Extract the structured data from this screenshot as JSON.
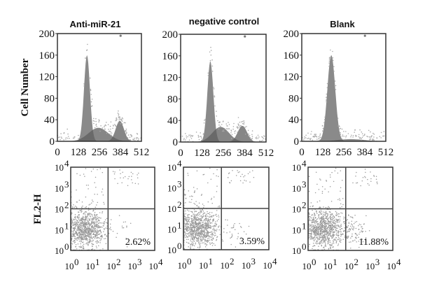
{
  "chart_data": [
    {
      "type": "area",
      "title": "Anti-miR-21",
      "ylabel": "Cell Number",
      "xlim": [
        0,
        512
      ],
      "ylim": [
        0,
        200
      ],
      "xticks": [
        "0",
        "128",
        "256",
        "384",
        "512"
      ],
      "yticks": [
        "0",
        "40",
        "80",
        "120",
        "160",
        "200"
      ],
      "peaks": [
        {
          "center": 180,
          "height": 160,
          "width": 18
        },
        {
          "center": 250,
          "height": 25,
          "width": 60
        },
        {
          "center": 380,
          "height": 38,
          "width": 25
        }
      ]
    },
    {
      "type": "area",
      "title": "negative control",
      "xlim": [
        0,
        512
      ],
      "ylim": [
        0,
        200
      ],
      "xticks": [
        "0",
        "128",
        "256",
        "384",
        "512"
      ],
      "yticks": [
        "0",
        "40",
        "80",
        "120",
        "160",
        "200"
      ],
      "peaks": [
        {
          "center": 178,
          "height": 150,
          "width": 18
        },
        {
          "center": 240,
          "height": 28,
          "width": 50
        },
        {
          "center": 370,
          "height": 30,
          "width": 28
        }
      ]
    },
    {
      "type": "area",
      "title": "Blank",
      "xlim": [
        0,
        512
      ],
      "ylim": [
        0,
        200
      ],
      "xticks": [
        "0",
        "128",
        "256",
        "384",
        "512"
      ],
      "yticks": [
        "0",
        "40",
        "80",
        "120",
        "160",
        "200"
      ],
      "peaks": [
        {
          "center": 180,
          "height": 160,
          "width": 24
        },
        {
          "center": 300,
          "height": 4,
          "width": 80
        }
      ]
    },
    {
      "type": "scatter",
      "ylabel": "FL2-H",
      "xscale": "log",
      "yscale": "log",
      "xlim": [
        1,
        10000
      ],
      "ylim": [
        1,
        10000
      ],
      "quadrant_gate": [
        60,
        100
      ],
      "lower_right_percent": "2.62%"
    },
    {
      "type": "scatter",
      "xscale": "log",
      "yscale": "log",
      "xlim": [
        1,
        10000
      ],
      "ylim": [
        1,
        10000
      ],
      "quadrant_gate": [
        60,
        100
      ],
      "lower_right_percent": "3.59%"
    },
    {
      "type": "scatter",
      "xscale": "log",
      "yscale": "log",
      "xlim": [
        1,
        10000
      ],
      "ylim": [
        1,
        10000
      ],
      "quadrant_gate": [
        60,
        100
      ],
      "lower_right_percent": "11.88%"
    }
  ],
  "tick_base": "10",
  "log_exponents": [
    "0",
    "1",
    "2",
    "3",
    "4"
  ],
  "colors": {
    "fill_main": "#8a8a8a",
    "fill_dark": "#5e5e5e",
    "dots": "#9a9a9a",
    "frame": "#333333"
  }
}
